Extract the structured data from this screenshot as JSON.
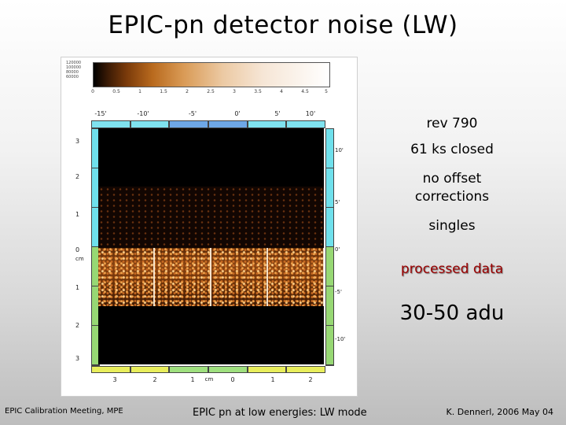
{
  "slide": {
    "title": "EPIC-pn detector noise  (LW)",
    "annotations": {
      "rev": "rev 790",
      "closed": "61 ks closed",
      "offset_line1": "no offset",
      "offset_line2": "corrections",
      "singles": "singles",
      "processed": "processed data",
      "adu": "30-50 adu"
    },
    "footer": {
      "left": "EPIC Calibration Meeting, MPE",
      "middle": "EPIC pn at low energies: LW mode",
      "right": "K. Dennerl, 2006 May 04"
    }
  },
  "figure": {
    "colorbar_ylabels": [
      "120000",
      "100000",
      "80000",
      "60000"
    ],
    "colorbar_ticks": [
      "0",
      "0.5",
      "1",
      "1.5",
      "2",
      "2.5",
      "3",
      "3.5",
      "4",
      "4.5",
      "5"
    ],
    "deg_top": [
      "-15'",
      "-10'",
      "-5'",
      "0'",
      "5'",
      "10'"
    ],
    "left_ticks": [
      "3",
      "2",
      "1",
      "0",
      "1",
      "2",
      "3"
    ],
    "left_unit": "cm",
    "right_ticks": [
      "10'",
      "5'",
      "0'",
      "-5'",
      "-10'"
    ],
    "bottom_ticks": [
      "3",
      "2",
      "1",
      "cm",
      "0",
      "1",
      "2"
    ],
    "colors": {
      "accent_processed": "#9a0000"
    }
  }
}
